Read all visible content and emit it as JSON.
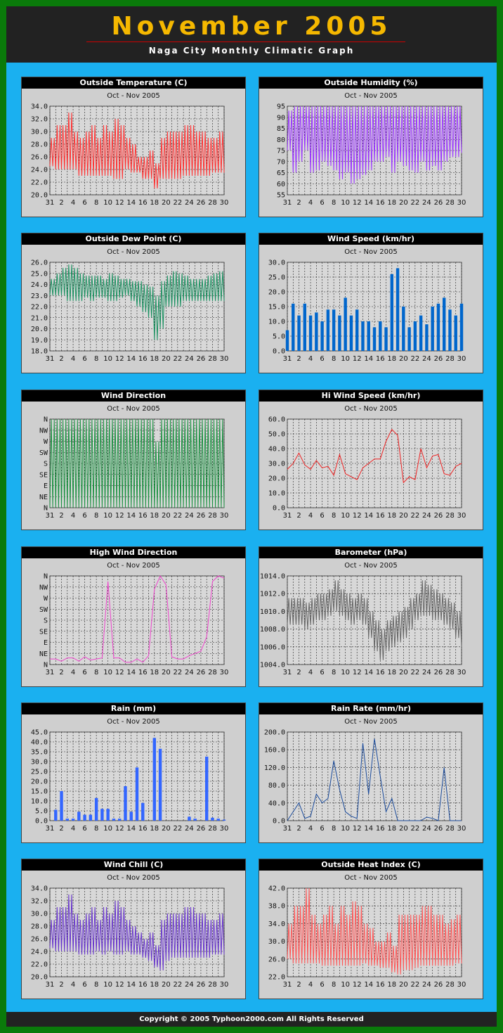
{
  "page": {
    "title": "November 2005",
    "subtitle": "Naga City Monthly Climatic Graph",
    "footer": "Copyright © 2005   Typhoon2000.com    All Rights Reserved"
  },
  "x_ticks": [
    "31",
    "2",
    "4",
    "6",
    "8",
    "10",
    "12",
    "14",
    "16",
    "18",
    "20",
    "22",
    "24",
    "26",
    "28",
    "30"
  ],
  "chart_data": [
    {
      "id": "temp",
      "type": "line",
      "title": "Outside Temperature (C)",
      "period": "Oct - Nov  2005",
      "color": "#ff3030",
      "ylim": [
        20,
        34
      ],
      "yticks": [
        "34.0",
        "32.0",
        "30.0",
        "28.0",
        "26.0",
        "24.0",
        "22.0",
        "20.0"
      ],
      "lows": [
        24.5,
        24,
        24,
        24,
        24,
        23,
        23,
        23,
        23,
        23,
        23,
        22.5,
        22.5,
        24,
        23.5,
        23.5,
        22.5,
        22.5,
        21,
        22.5,
        22.5,
        22.5,
        22.5,
        23,
        23,
        23,
        23,
        23,
        23.5,
        23.5,
        23.5
      ],
      "highs": [
        29,
        31,
        31,
        33,
        30,
        29,
        30,
        31,
        29,
        31,
        30,
        32,
        31,
        29,
        28,
        26,
        26,
        27,
        25,
        29,
        30,
        30,
        30,
        31,
        31,
        30,
        30,
        29,
        29,
        30,
        30
      ]
    },
    {
      "id": "hum",
      "type": "line",
      "title": "Outside Humidity (%)",
      "period": "Oct - Nov  2005",
      "color": "#9933ff",
      "ylim": [
        55,
        95
      ],
      "yticks": [
        "95",
        "90",
        "85",
        "80",
        "75",
        "70",
        "65",
        "60",
        "55"
      ],
      "lows": [
        75,
        65,
        70,
        75,
        65,
        66,
        70,
        68,
        66,
        62,
        65,
        60,
        62,
        64,
        66,
        70,
        70,
        72,
        65,
        70,
        68,
        66,
        65,
        70,
        66,
        68,
        66,
        70,
        72,
        72,
        74
      ],
      "highs": [
        93,
        95,
        95,
        95,
        95,
        95,
        95,
        95,
        95,
        95,
        95,
        95,
        95,
        95,
        95,
        95,
        95,
        95,
        95,
        95,
        95,
        95,
        95,
        95,
        95,
        95,
        95,
        95,
        95,
        95,
        95
      ]
    },
    {
      "id": "dew",
      "type": "line",
      "title": "Outside Dew Point (C)",
      "period": "Oct - Nov  2005",
      "color": "#1a9060",
      "ylim": [
        18,
        26
      ],
      "yticks": [
        "26.0",
        "25.0",
        "24.0",
        "23.0",
        "22.0",
        "21.0",
        "20.0",
        "19.0",
        "18.0"
      ],
      "lows": [
        23,
        23,
        23,
        22.5,
        22.5,
        22.5,
        22.8,
        22.5,
        22.8,
        22.8,
        22.5,
        22.5,
        22.8,
        23,
        22.5,
        22,
        21.5,
        21,
        19,
        20,
        22,
        22,
        22,
        22.5,
        22.5,
        22.5,
        22.5,
        22.5,
        22.5,
        22.5,
        22.5
      ],
      "highs": [
        24.5,
        25,
        25.5,
        25.8,
        25.5,
        25,
        24.8,
        24.8,
        24.8,
        24.5,
        25,
        24.8,
        24.5,
        24.5,
        24.3,
        24.3,
        24,
        23.8,
        23,
        24.3,
        24.8,
        25.2,
        25,
        24.8,
        24.5,
        24.5,
        24.5,
        24.8,
        25,
        25.2,
        25
      ]
    },
    {
      "id": "wind",
      "type": "bar",
      "title": "Wind Speed (km/hr)",
      "period": "Oct - Nov  2005",
      "color": "#0066cc",
      "ylim": [
        0,
        30
      ],
      "yticks": [
        "30.0",
        "25.0",
        "20.0",
        "15.0",
        "10.0",
        "5.0",
        "0.0"
      ],
      "values": [
        7,
        16,
        12,
        16,
        12,
        13,
        10,
        14,
        14,
        12,
        18,
        12,
        14,
        10,
        10,
        8,
        10,
        8,
        26,
        28,
        15,
        8,
        10,
        12,
        9,
        15,
        16,
        18,
        14,
        12,
        16
      ]
    },
    {
      "id": "wdir",
      "type": "line",
      "title": "Wind Direction",
      "period": "Oct - Nov  2005",
      "color": "#1a9040",
      "ylim": [
        0,
        8
      ],
      "yticks": [
        "N",
        "NW",
        "W",
        "SW",
        "S",
        "SE",
        "E",
        "NE",
        "N"
      ],
      "lows": [
        0,
        0,
        0,
        0,
        0,
        0,
        0,
        0,
        0,
        0,
        0,
        0,
        0,
        0,
        0,
        0,
        0,
        0,
        0,
        0,
        0,
        0,
        0,
        0,
        0,
        0,
        0,
        0,
        0,
        0,
        0
      ],
      "highs": [
        8,
        8,
        8,
        8,
        8,
        8,
        8,
        8,
        8,
        8,
        8,
        8,
        8,
        8,
        8,
        8,
        8,
        8,
        6,
        8,
        8,
        8,
        8,
        8,
        8,
        8,
        8,
        8,
        8,
        8,
        8
      ]
    },
    {
      "id": "hiwind",
      "type": "line",
      "title": "Hi Wind Speed (km/hr)",
      "period": "Oct - Nov  2005",
      "color": "#ee2222",
      "ylim": [
        0,
        60
      ],
      "yticks": [
        "60.0",
        "50.0",
        "40.0",
        "30.0",
        "20.0",
        "10.0",
        "0.0"
      ],
      "values": [
        26,
        30,
        37,
        29,
        26,
        32,
        27,
        28,
        22,
        36,
        23,
        21,
        19,
        27,
        30,
        33,
        33,
        45,
        53,
        49,
        17,
        21,
        19,
        40,
        27,
        35,
        36,
        23,
        22,
        28,
        30
      ]
    },
    {
      "id": "hidir",
      "type": "line",
      "title": "High Wind Direction",
      "period": "Oct - Nov  2005",
      "color": "#ee44cc",
      "ylim": [
        0,
        8
      ],
      "yticks": [
        "N",
        "NW",
        "W",
        "SW",
        "S",
        "SE",
        "E",
        "NE",
        "N"
      ],
      "values": [
        0.5,
        0.5,
        0.3,
        0.6,
        0.6,
        0.3,
        0.7,
        0.4,
        0.5,
        0.6,
        7.5,
        0.6,
        0.6,
        0.2,
        0.2,
        0.5,
        0.2,
        0.8,
        6.8,
        8,
        7.2,
        0.7,
        0.5,
        0.5,
        0.8,
        1,
        1.2,
        2.5,
        7.5,
        8,
        7.8
      ]
    },
    {
      "id": "baro",
      "type": "line",
      "title": "Barometer (hPa)",
      "period": "Oct - Nov  2005",
      "color": "#666666",
      "ylim": [
        1004,
        1014
      ],
      "yticks": [
        "1014.0",
        "1012.0",
        "1010.0",
        "1008.0",
        "1006.0",
        "1004.0"
      ],
      "lows": [
        1008.5,
        1008.5,
        1008.5,
        1008,
        1008.5,
        1009,
        1009,
        1009.5,
        1010,
        1009.5,
        1009,
        1008.5,
        1009,
        1008.5,
        1007,
        1005.5,
        1004.5,
        1005.5,
        1006,
        1006.5,
        1007,
        1008,
        1009,
        1009.5,
        1009.5,
        1009,
        1009,
        1008.5,
        1008,
        1007,
        1006
      ],
      "highs": [
        1011.5,
        1011.5,
        1011.5,
        1011,
        1011.5,
        1012,
        1012,
        1012.5,
        1013.5,
        1012.5,
        1012,
        1011.5,
        1012,
        1011.5,
        1010,
        1009,
        1008,
        1009,
        1009.5,
        1010,
        1010.5,
        1011.5,
        1012,
        1013.5,
        1013,
        1012.5,
        1012,
        1011.5,
        1011,
        1010,
        1009
      ]
    },
    {
      "id": "rain",
      "type": "bar",
      "title": "Rain (mm)",
      "period": "Oct - Nov  2005",
      "color": "#3366ff",
      "ylim": [
        0,
        45
      ],
      "yticks": [
        "45.0",
        "40.0",
        "35.0",
        "30.0",
        "25.0",
        "20.0",
        "15.0",
        "10.0",
        "5.0",
        "0.0"
      ],
      "values": [
        0,
        5.5,
        15,
        1,
        1,
        4.5,
        3,
        3,
        11.5,
        6,
        6,
        1,
        1,
        17.5,
        4.5,
        27,
        9,
        0,
        42,
        36.5,
        0,
        0,
        0,
        0,
        2,
        1,
        0,
        32.5,
        1.5,
        1,
        0.5
      ]
    },
    {
      "id": "rrate",
      "type": "line",
      "title": "Rain Rate (mm/hr)",
      "period": "Oct - Nov  2005",
      "color": "#1a4a9a",
      "ylim": [
        0,
        200
      ],
      "yticks": [
        "200.0",
        "160.0",
        "120.0",
        "80.0",
        "40.0",
        "0.0"
      ],
      "values": [
        0,
        20,
        40,
        5,
        10,
        60,
        40,
        50,
        135,
        70,
        20,
        10,
        5,
        175,
        60,
        185,
        100,
        20,
        50,
        0,
        0,
        0,
        0,
        0,
        8,
        5,
        0,
        120,
        0,
        0,
        0
      ]
    },
    {
      "id": "chill",
      "type": "line",
      "title": "Wind Chill (C)",
      "period": "Oct - Nov  2005",
      "color": "#6633cc",
      "ylim": [
        20,
        34
      ],
      "yticks": [
        "34.0",
        "32.0",
        "30.0",
        "28.0",
        "26.0",
        "24.0",
        "22.0",
        "20.0"
      ],
      "lows": [
        24.5,
        24,
        24,
        24,
        24,
        23.5,
        23.5,
        23.5,
        24,
        23.5,
        24,
        23.5,
        23.5,
        24,
        23.5,
        23.5,
        23,
        22.5,
        21.5,
        21,
        22.5,
        23,
        23,
        23,
        23,
        23,
        23,
        23,
        23.5,
        23.5,
        23.5
      ],
      "highs": [
        29,
        31,
        31,
        33,
        30,
        29,
        30,
        31,
        29,
        31,
        30,
        32,
        31,
        29,
        28,
        27,
        26,
        27,
        25,
        29,
        30,
        30,
        30,
        31,
        31,
        30,
        30,
        29,
        29,
        30,
        30
      ]
    },
    {
      "id": "heat",
      "type": "line",
      "title": "Outside Heat Index (C)",
      "period": "Oct - Nov  2005",
      "color": "#ff5555",
      "ylim": [
        22,
        42
      ],
      "yticks": [
        "42.0",
        "38.0",
        "34.0",
        "30.0",
        "26.0",
        "22.0"
      ],
      "lows": [
        26,
        25,
        25,
        25,
        25,
        25,
        24.5,
        24.5,
        24.5,
        24.5,
        24.5,
        24.5,
        24.5,
        25,
        24.5,
        24.5,
        24,
        24,
        23,
        22.5,
        23.5,
        23.5,
        24,
        24.5,
        24.5,
        24.5,
        24.5,
        24.5,
        24.5,
        25,
        25
      ],
      "highs": [
        34,
        38,
        38,
        42,
        36,
        34,
        36,
        38,
        34,
        38,
        36,
        39,
        38,
        34,
        33,
        30,
        30,
        32,
        29,
        36,
        36,
        36,
        36,
        38,
        38,
        36,
        36,
        34,
        35,
        36,
        36
      ]
    }
  ]
}
